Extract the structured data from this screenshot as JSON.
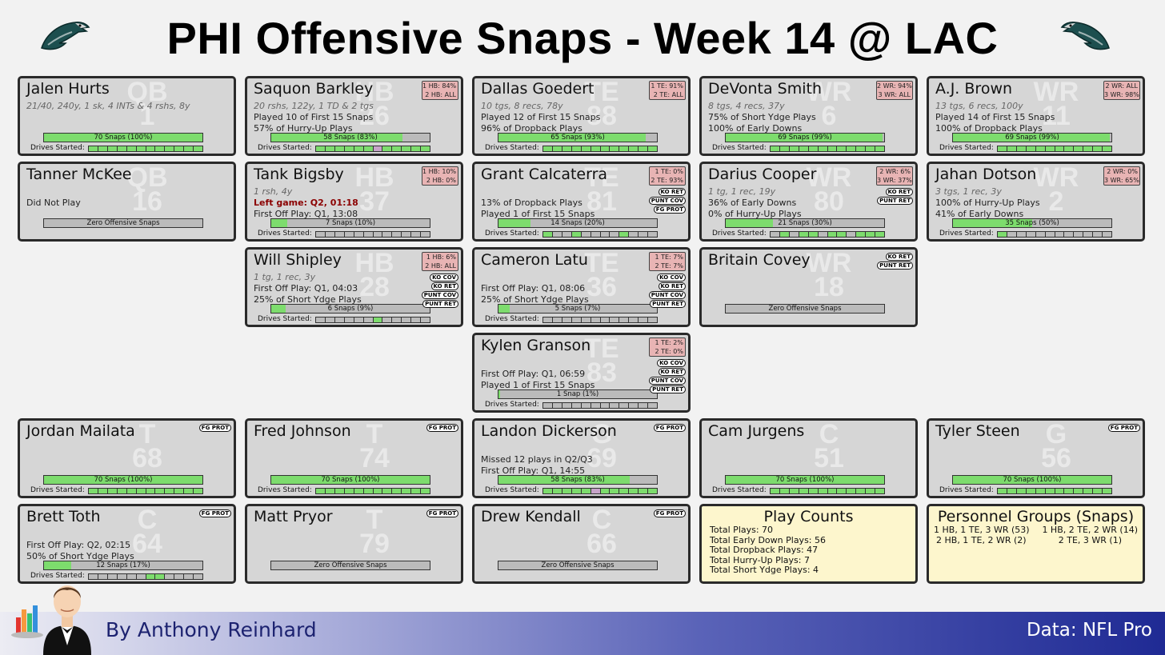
{
  "title": "PHI Offensive Snaps - Week 14 @ LAC",
  "footer": {
    "byline": "By Anthony Reinhard",
    "source": "Data: NFL Pro"
  },
  "colors": {
    "snap_fill": "#7ddc6d",
    "share_bg": "#e8b4b4",
    "card_bg": "#d6d6d6",
    "info_bg": "#fdf6cd"
  },
  "drives_label": "Drives Started:",
  "players": [
    {
      "id": "hurts",
      "name": "Jalen Hurts",
      "pos": "QB",
      "num": "1",
      "lines": [
        {
          "t": "21/40, 240y, 1 sk, 4 INTs & 4 rshs, 8y",
          "c": "sub"
        },
        {
          "t": "",
          "c": ""
        },
        {
          "t": "",
          "c": ""
        }
      ],
      "snap_text": "70 Snaps (100%)",
      "snap_pct": 100,
      "drives": "gggggggggggg",
      "share": [],
      "tags": []
    },
    {
      "id": "barkley",
      "name": "Saquon Barkley",
      "pos": "HB",
      "num": "26",
      "lines": [
        {
          "t": "20 rshs, 122y, 1 TD & 2 tgs",
          "c": "sub"
        },
        {
          "t": "Played 10 of First 15 Snaps",
          "c": ""
        },
        {
          "t": "57% of Hurry-Up Plays",
          "c": ""
        }
      ],
      "snap_text": "58 Snaps (83%)",
      "snap_pct": 83,
      "drives": "ggggggpggggg",
      "share": [
        "1 HB: 84%",
        "2 HB: ALL"
      ],
      "tags": []
    },
    {
      "id": "goedert",
      "name": "Dallas Goedert",
      "pos": "TE",
      "num": "88",
      "lines": [
        {
          "t": "10 tgs, 8 recs, 78y",
          "c": "sub"
        },
        {
          "t": "Played 12 of First 15 Snaps",
          "c": ""
        },
        {
          "t": "96% of Dropback Plays",
          "c": ""
        }
      ],
      "snap_text": "65 Snaps (93%)",
      "snap_pct": 93,
      "drives": "gggggggggggg",
      "share": [
        "1 TE: 91%",
        "2 TE: ALL"
      ],
      "tags": []
    },
    {
      "id": "smith",
      "name": "DeVonta Smith",
      "pos": "WR",
      "num": "6",
      "lines": [
        {
          "t": "8 tgs, 4 recs, 37y",
          "c": "sub"
        },
        {
          "t": "75% of Short Ydge Plays",
          "c": ""
        },
        {
          "t": "100% of Early Downs",
          "c": ""
        }
      ],
      "snap_text": "69 Snaps (99%)",
      "snap_pct": 99,
      "drives": "gggggggggggg",
      "share": [
        "2 WR: 94%",
        "3 WR: ALL"
      ],
      "tags": []
    },
    {
      "id": "brown",
      "name": "A.J. Brown",
      "pos": "WR",
      "num": "11",
      "lines": [
        {
          "t": "13 tgs, 6 recs, 100y",
          "c": "sub"
        },
        {
          "t": "Played 14 of First 15 Snaps",
          "c": ""
        },
        {
          "t": "100% of Dropback Plays",
          "c": ""
        }
      ],
      "snap_text": "69 Snaps (99%)",
      "snap_pct": 99,
      "drives": "gggggggggggg",
      "share": [
        "2 WR: ALL",
        "3 WR: 98%"
      ],
      "tags": []
    },
    {
      "id": "mckee",
      "name": "Tanner McKee",
      "pos": "QB",
      "num": "16",
      "lines": [
        {
          "t": "",
          "c": ""
        },
        {
          "t": "Did Not Play",
          "c": ""
        },
        {
          "t": "",
          "c": ""
        }
      ],
      "snap_text": "Zero Offensive Snaps",
      "snap_pct": 0,
      "drives": "",
      "share": [],
      "tags": []
    },
    {
      "id": "bigsby",
      "name": "Tank Bigsby",
      "pos": "HB",
      "num": "37",
      "lines": [
        {
          "t": "1 rsh, 4y",
          "c": "sub"
        },
        {
          "t": "Left game: Q2, 01:18",
          "c": "left"
        },
        {
          "t": "First Off Play: Q1, 13:08",
          "c": ""
        }
      ],
      "snap_text": "7 Snaps (10%)",
      "snap_pct": 10,
      "drives": "bbbbbbbbbbbb",
      "share": [
        "1 HB: 10%",
        "2 HB: 0%"
      ],
      "tags": []
    },
    {
      "id": "calcaterra",
      "name": "Grant Calcaterra",
      "pos": "TE",
      "num": "81",
      "lines": [
        {
          "t": "",
          "c": ""
        },
        {
          "t": "13% of Dropback Plays",
          "c": ""
        },
        {
          "t": "Played 1 of First 15 Snaps",
          "c": ""
        }
      ],
      "snap_text": "14 Snaps (20%)",
      "snap_pct": 20,
      "drives": "gbbgbbbbgbbb",
      "share": [
        "1 TE: 0%",
        "2 TE: 93%"
      ],
      "tags": [
        "KO RET",
        "PUNT COV",
        "FG PROT"
      ]
    },
    {
      "id": "cooper",
      "name": "Darius Cooper",
      "pos": "WR",
      "num": "80",
      "lines": [
        {
          "t": "1 tg, 1 rec, 19y",
          "c": "sub"
        },
        {
          "t": "36% of Early Downs",
          "c": ""
        },
        {
          "t": "0% of Hurry-Up Plays",
          "c": ""
        }
      ],
      "snap_text": "21 Snaps (30%)",
      "snap_pct": 30,
      "drives": "bgbggbggbggg",
      "share": [
        "2 WR: 6%",
        "3 WR: 37%"
      ],
      "tags": [
        "KO RET",
        "PUNT RET"
      ]
    },
    {
      "id": "dotson",
      "name": "Jahan Dotson",
      "pos": "WR",
      "num": "2",
      "lines": [
        {
          "t": "3 tgs, 1 rec, 3y",
          "c": "sub"
        },
        {
          "t": "100% of Hurry-Up Plays",
          "c": ""
        },
        {
          "t": "41% of Early Downs",
          "c": ""
        }
      ],
      "snap_text": "35 Snaps (50%)",
      "snap_pct": 50,
      "drives": "gbbbbbbbbbbb",
      "share": [
        "2 WR: 0%",
        "3 WR: 65%"
      ],
      "tags": []
    },
    {
      "id": "shipley",
      "name": "Will Shipley",
      "pos": "HB",
      "num": "28",
      "lines": [
        {
          "t": "1 tg, 1 rec, 3y",
          "c": "sub"
        },
        {
          "t": "First Off Play: Q1, 04:03",
          "c": ""
        },
        {
          "t": "25% of Short Ydge Plays",
          "c": ""
        }
      ],
      "snap_text": "6 Snaps (9%)",
      "snap_pct": 9,
      "drives": "bbbbbbgbbbbb",
      "share": [
        "1 HB: 6%",
        "2 HB: ALL"
      ],
      "tags": [
        "KO COV",
        "KO RET",
        "PUNT COV",
        "PUNT RET"
      ]
    },
    {
      "id": "latu",
      "name": "Cameron Latu",
      "pos": "TE",
      "num": "36",
      "lines": [
        {
          "t": "",
          "c": ""
        },
        {
          "t": "First Off Play: Q1, 08:06",
          "c": ""
        },
        {
          "t": "25% of Short Ydge Plays",
          "c": ""
        }
      ],
      "snap_text": "5 Snaps (7%)",
      "snap_pct": 7,
      "drives": "bbbbbbbbbbbb",
      "share": [
        "1 TE: 7%",
        "2 TE: 7%"
      ],
      "tags": [
        "KO COV",
        "KO RET",
        "PUNT COV",
        "PUNT RET"
      ]
    },
    {
      "id": "covey",
      "name": "Britain Covey",
      "pos": "WR",
      "num": "18",
      "lines": [
        {
          "t": "",
          "c": ""
        },
        {
          "t": "",
          "c": ""
        },
        {
          "t": "",
          "c": ""
        }
      ],
      "snap_text": "Zero Offensive Snaps",
      "snap_pct": 0,
      "drives": "",
      "share": [],
      "tags": [
        "KO RET",
        "PUNT RET"
      ]
    },
    {
      "id": "granson",
      "name": "Kylen Granson",
      "pos": "TE",
      "num": "83",
      "lines": [
        {
          "t": "",
          "c": ""
        },
        {
          "t": "First Off Play: Q1, 06:59",
          "c": ""
        },
        {
          "t": "Played 1 of First 15 Snaps",
          "c": ""
        }
      ],
      "snap_text": "1 Snap (1%)",
      "snap_pct": 1,
      "drives": "bbbbbbbbbbbb",
      "share": [
        "1 TE: 2%",
        "2 TE: 0%"
      ],
      "tags": [
        "KO COV",
        "KO RET",
        "PUNT COV",
        "PUNT RET"
      ]
    },
    {
      "id": "mailata",
      "name": "Jordan Mailata",
      "pos": "T",
      "num": "68",
      "lines": [
        {
          "t": "",
          "c": ""
        },
        {
          "t": "",
          "c": ""
        },
        {
          "t": "",
          "c": ""
        }
      ],
      "snap_text": "70 Snaps (100%)",
      "snap_pct": 100,
      "drives": "gggggggggggg",
      "share": [],
      "tags": [
        "FG PROT"
      ]
    },
    {
      "id": "johnson",
      "name": "Fred Johnson",
      "pos": "T",
      "num": "74",
      "lines": [
        {
          "t": "",
          "c": ""
        },
        {
          "t": "",
          "c": ""
        },
        {
          "t": "",
          "c": ""
        }
      ],
      "snap_text": "70 Snaps (100%)",
      "snap_pct": 100,
      "drives": "gggggggggggg",
      "share": [],
      "tags": [
        "FG PROT"
      ]
    },
    {
      "id": "dickerson",
      "name": "Landon Dickerson",
      "pos": "G",
      "num": "69",
      "lines": [
        {
          "t": "",
          "c": ""
        },
        {
          "t": "Missed 12 plays in Q2/Q3",
          "c": ""
        },
        {
          "t": "First Off Play: Q1, 14:55",
          "c": ""
        }
      ],
      "snap_text": "58 Snaps (83%)",
      "snap_pct": 83,
      "drives": "gggggpgggggg",
      "share": [],
      "tags": [
        "FG PROT"
      ]
    },
    {
      "id": "jurgens",
      "name": "Cam Jurgens",
      "pos": "C",
      "num": "51",
      "lines": [
        {
          "t": "",
          "c": ""
        },
        {
          "t": "",
          "c": ""
        },
        {
          "t": "",
          "c": ""
        }
      ],
      "snap_text": "70 Snaps (100%)",
      "snap_pct": 100,
      "drives": "gggggggggggg",
      "share": [],
      "tags": []
    },
    {
      "id": "steen",
      "name": "Tyler Steen",
      "pos": "G",
      "num": "56",
      "lines": [
        {
          "t": "",
          "c": ""
        },
        {
          "t": "",
          "c": ""
        },
        {
          "t": "",
          "c": ""
        }
      ],
      "snap_text": "70 Snaps (100%)",
      "snap_pct": 100,
      "drives": "gggggggggggg",
      "share": [],
      "tags": [
        "FG PROT"
      ]
    },
    {
      "id": "toth",
      "name": "Brett Toth",
      "pos": "C",
      "num": "64",
      "lines": [
        {
          "t": "",
          "c": ""
        },
        {
          "t": "First Off Play: Q2, 02:15",
          "c": ""
        },
        {
          "t": "50% of Short Ydge Plays",
          "c": ""
        }
      ],
      "snap_text": "12 Snaps (17%)",
      "snap_pct": 17,
      "drives": "bbbbbbggbbbb",
      "share": [],
      "tags": [
        "FG PROT"
      ]
    },
    {
      "id": "pryor",
      "name": "Matt Pryor",
      "pos": "T",
      "num": "79",
      "lines": [
        {
          "t": "",
          "c": ""
        },
        {
          "t": "",
          "c": ""
        },
        {
          "t": "",
          "c": ""
        }
      ],
      "snap_text": "Zero Offensive Snaps",
      "snap_pct": 0,
      "drives": "",
      "share": [],
      "tags": [
        "FG PROT"
      ]
    },
    {
      "id": "kendall",
      "name": "Drew Kendall",
      "pos": "C",
      "num": "66",
      "lines": [
        {
          "t": "",
          "c": ""
        },
        {
          "t": "",
          "c": ""
        },
        {
          "t": "",
          "c": ""
        }
      ],
      "snap_text": "Zero Offensive Snaps",
      "snap_pct": 0,
      "drives": "",
      "share": [],
      "tags": [
        "FG PROT"
      ]
    }
  ],
  "play_counts": {
    "title": "Play Counts",
    "lines": [
      "Total Plays: 70",
      "Total Early Down Plays: 56",
      "Total Dropback Plays: 47",
      "Total Hurry-Up Plays: 7",
      "Total Short Ydge Plays: 4"
    ]
  },
  "personnel": {
    "title": "Personnel Groups (Snaps)",
    "items": [
      "1 HB, 1 TE, 3 WR (53)",
      "1 HB, 2 TE, 2 WR (14)",
      "2 HB, 1 TE, 2 WR (2)",
      "2 TE, 3 WR (1)"
    ]
  }
}
